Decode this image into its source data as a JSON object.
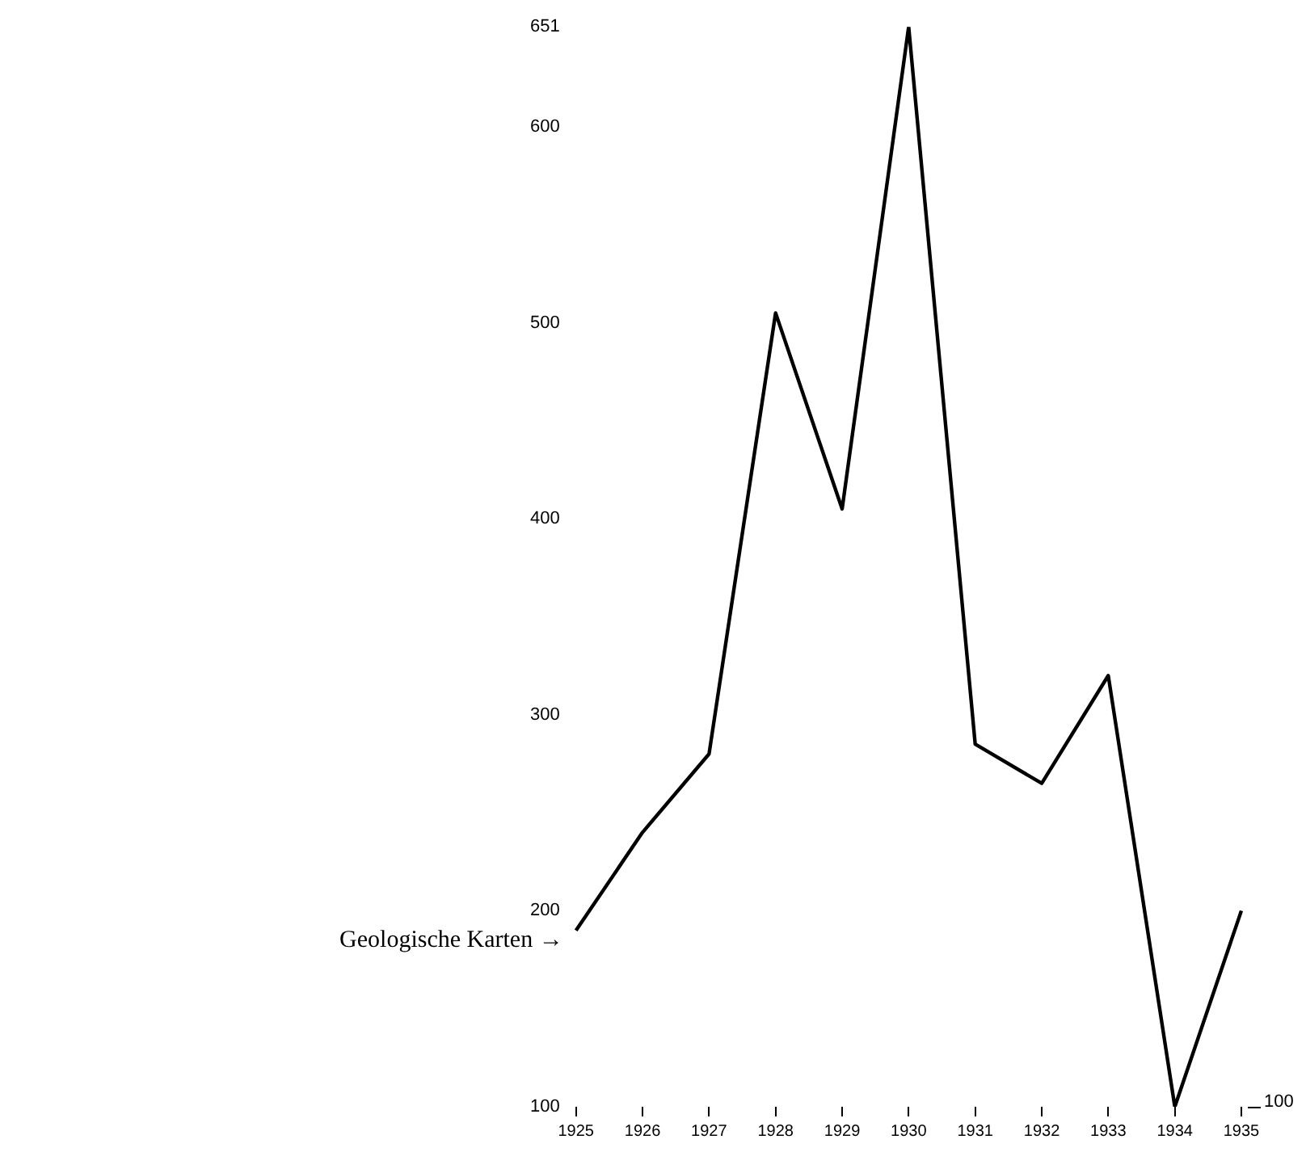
{
  "chart_data": {
    "type": "line",
    "categories": [
      "1925",
      "1926",
      "1927",
      "1928",
      "1929",
      "1930",
      "1931",
      "1932",
      "1933",
      "1934",
      "1935"
    ],
    "series": [
      {
        "color": "#000000",
        "values": [
          190,
          240,
          280,
          505,
          405,
          651,
          285,
          265,
          320,
          100,
          200
        ]
      }
    ],
    "ylim": [
      100,
      651
    ],
    "yticks": [
      100,
      200,
      300,
      400,
      500,
      600,
      651
    ],
    "annotations": [
      {
        "text": "Geologische Karten →",
        "x": "1925",
        "y": 190
      },
      "100"
    ],
    "grid": false,
    "legend": false,
    "marker": "none",
    "line_style": "solid"
  }
}
